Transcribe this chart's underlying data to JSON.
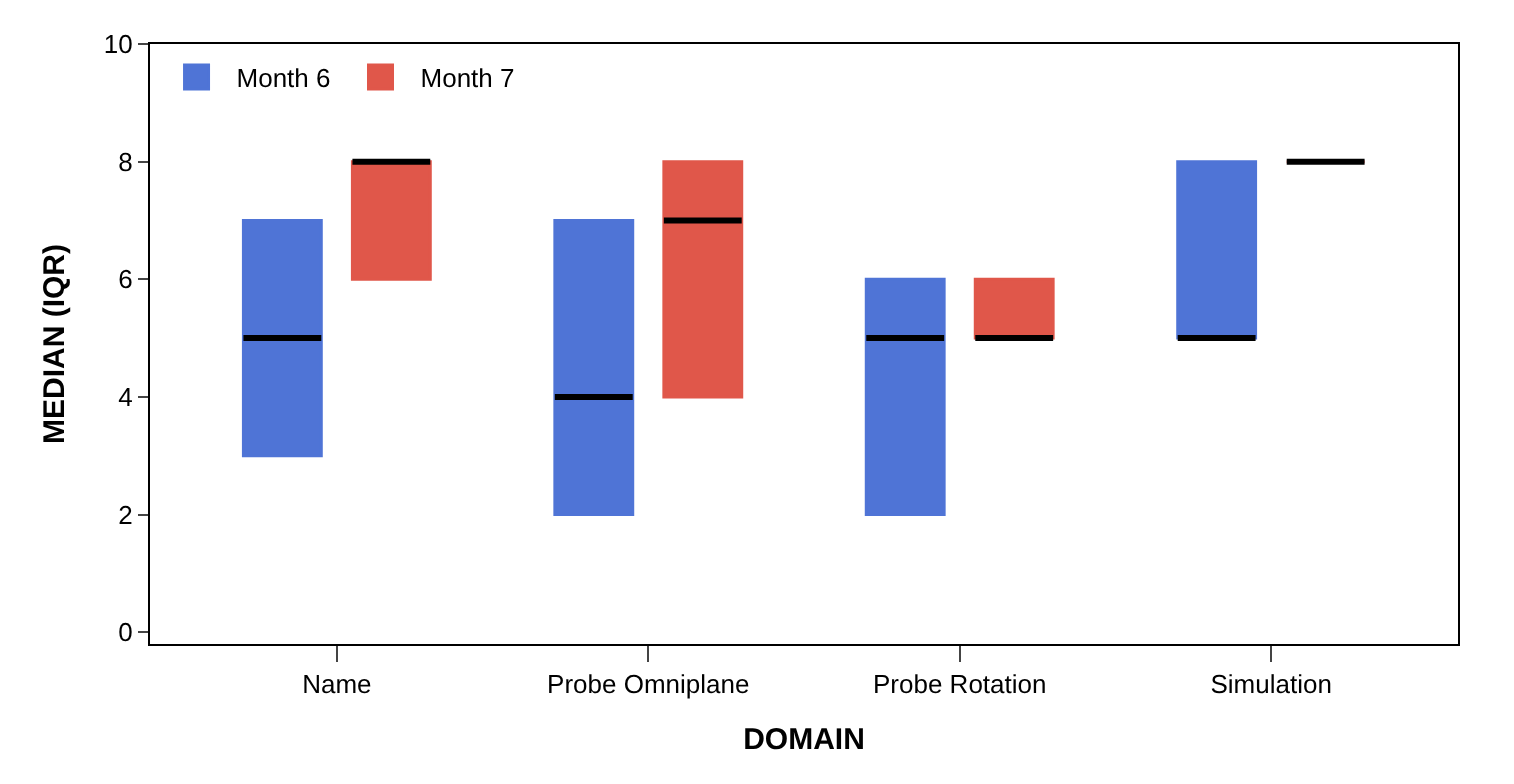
{
  "chart_data": {
    "type": "box",
    "xlabel": "DOMAIN",
    "ylabel": "MEDIAN (IQR)",
    "categories": [
      "Name",
      "Probe Omniplane",
      "Probe Rotation",
      "Simulation"
    ],
    "series": [
      {
        "name": "Month 6",
        "color": "#4f74d6",
        "boxes": [
          {
            "low": 3,
            "q1": 3,
            "median": 5,
            "q3": 7,
            "high": 7
          },
          {
            "low": 2,
            "q1": 2,
            "median": 4,
            "q3": 7,
            "high": 7
          },
          {
            "low": 2,
            "q1": 2,
            "median": 5,
            "q3": 6,
            "high": 6
          },
          {
            "low": 5,
            "q1": 5,
            "median": 5,
            "q3": 8,
            "high": 8
          }
        ]
      },
      {
        "name": "Month 7",
        "color": "#e0574a",
        "boxes": [
          {
            "low": 6,
            "q1": 6,
            "median": 8,
            "q3": 8,
            "high": 8
          },
          {
            "low": 4,
            "q1": 4,
            "median": 7,
            "q3": 8,
            "high": 8
          },
          {
            "low": 5,
            "q1": 5,
            "median": 5,
            "q3": 6,
            "high": 6
          },
          {
            "low": 8,
            "q1": 8,
            "median": 8,
            "q3": 8,
            "high": 8
          }
        ]
      }
    ],
    "ylim": [
      -0.2,
      10
    ],
    "yticks": [
      0,
      2,
      4,
      6,
      8,
      10
    ],
    "legend": "top left"
  }
}
